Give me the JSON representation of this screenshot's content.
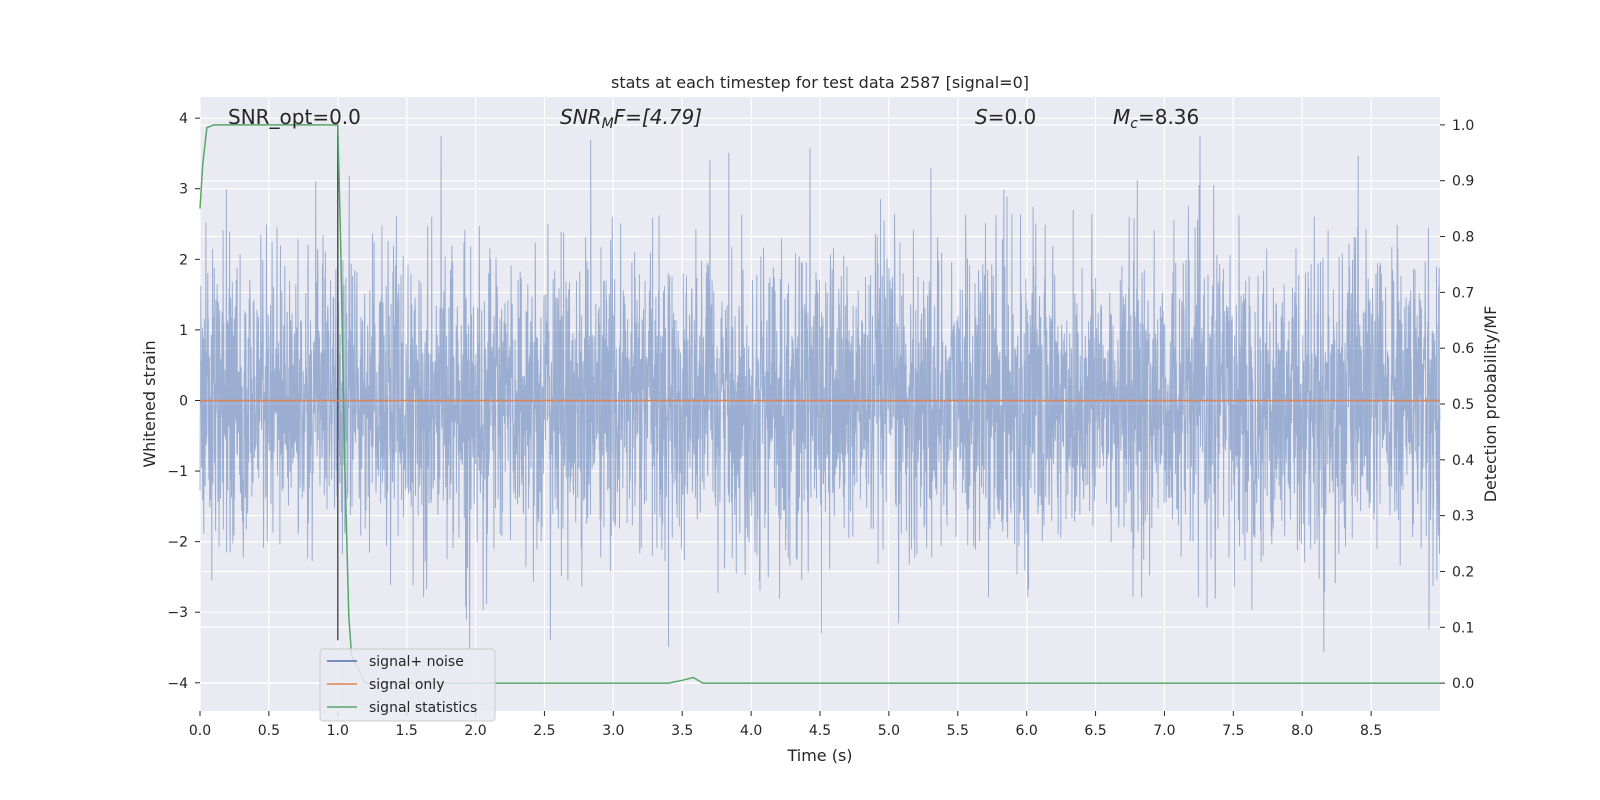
{
  "chart_data": {
    "type": "line",
    "title": "stats at each timestep for test data 2587 [signal=0]",
    "xlabel": "Time (s)",
    "ylabel": "Whitened strain",
    "ylabel_right": "Detection probability/MF",
    "xlim": [
      0.0,
      9.0
    ],
    "ylim": [
      -4.4,
      4.3
    ],
    "ylim_right": [
      -0.05,
      1.05
    ],
    "x_ticks": [
      "0.0",
      "0.5",
      "1.0",
      "1.5",
      "2.0",
      "2.5",
      "3.0",
      "3.5",
      "4.0",
      "4.5",
      "5.0",
      "5.5",
      "6.0",
      "6.5",
      "7.0",
      "7.5",
      "8.0",
      "8.5"
    ],
    "x_tick_values": [
      0.0,
      0.5,
      1.0,
      1.5,
      2.0,
      2.5,
      3.0,
      3.5,
      4.0,
      4.5,
      5.0,
      5.5,
      6.0,
      6.5,
      7.0,
      7.5,
      8.0,
      8.5
    ],
    "y_ticks": [
      "4",
      "3",
      "2",
      "1",
      "0",
      "−1",
      "−2",
      "−3",
      "−4"
    ],
    "y_tick_values": [
      4,
      3,
      2,
      1,
      0,
      -1,
      -2,
      -3,
      -4
    ],
    "y_ticks_right": [
      "1.0",
      "0.9",
      "0.8",
      "0.7",
      "0.6",
      "0.5",
      "0.4",
      "0.3",
      "0.2",
      "0.1",
      "0.0"
    ],
    "y_tick_values_right": [
      1.0,
      0.9,
      0.8,
      0.7,
      0.6,
      0.5,
      0.4,
      0.3,
      0.2,
      0.1,
      0.0
    ],
    "grid": true,
    "legend_position": "lower-left",
    "annotations": {
      "snr_opt": "SNR_opt=0.0",
      "snr_mf_base": "SNR",
      "snr_mf_sub": "M",
      "snr_mf_rest": "F=[4.79]",
      "s_var": "S",
      "s_rest": "=0.0",
      "mc_var": "M",
      "mc_sub": "c",
      "mc_rest": "=8.36"
    },
    "vertical_marker_x": 1.0,
    "series": [
      {
        "name": "signal+ noise",
        "color": "#4c72b0",
        "axis": "left",
        "style": "noise",
        "sample_rate_hz": 2048,
        "duration_s": 9.0,
        "envelope_min": -4.0,
        "envelope_max": 3.75
      },
      {
        "name": "signal only",
        "color": "#dd8452",
        "axis": "left",
        "x": [
          0.0,
          9.0
        ],
        "y": [
          0.0,
          0.0
        ]
      },
      {
        "name": "signal statistics",
        "color": "#55a868",
        "axis": "right",
        "x": [
          0.0,
          0.02,
          0.05,
          0.1,
          0.2,
          0.4,
          0.6,
          0.8,
          0.95,
          1.0,
          1.02,
          1.05,
          1.08,
          1.1,
          1.2,
          1.5,
          2.0,
          2.5,
          3.0,
          3.4,
          3.5,
          3.58,
          3.65,
          3.7,
          4.0,
          5.0,
          6.0,
          7.0,
          8.0,
          9.0
        ],
        "y": [
          0.85,
          0.93,
          0.995,
          1.0,
          1.0,
          1.0,
          1.0,
          1.0,
          1.0,
          1.0,
          0.8,
          0.4,
          0.12,
          0.05,
          0.0,
          0.0,
          0.0,
          0.0,
          0.0,
          0.0,
          0.005,
          0.01,
          0.0,
          0.0,
          0.0,
          0.0,
          0.0,
          0.0,
          0.0,
          0.0
        ]
      }
    ]
  }
}
